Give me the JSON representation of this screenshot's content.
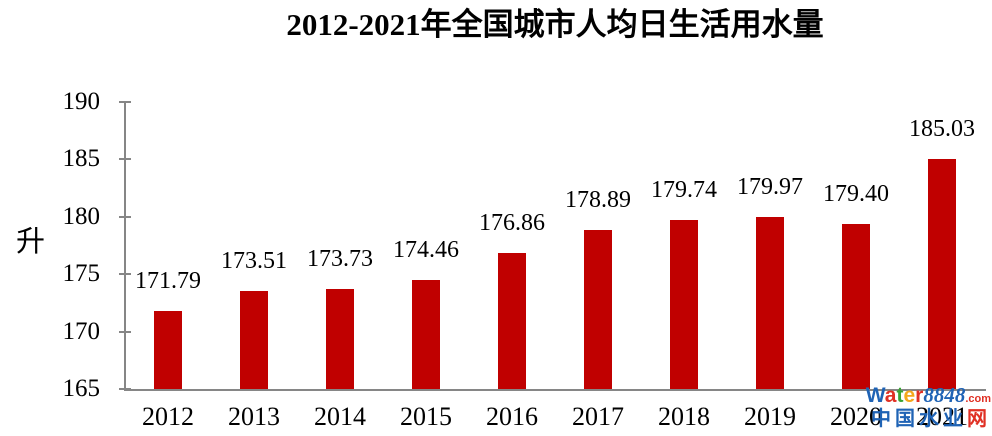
{
  "chart_data": {
    "type": "bar",
    "title": "2012-2021年全国城市人均日生活用水量",
    "ylabel": "升",
    "xlabel": "",
    "categories": [
      "2012",
      "2013",
      "2014",
      "2015",
      "2016",
      "2017",
      "2018",
      "2019",
      "2020",
      "2021"
    ],
    "values": [
      171.79,
      173.51,
      173.73,
      174.46,
      176.86,
      178.89,
      179.74,
      179.97,
      179.4,
      185.03
    ],
    "data_labels": [
      "171.79",
      "173.51",
      "173.73",
      "174.46",
      "176.86",
      "178.89",
      "179.74",
      "179.97",
      "179.40",
      "185.03"
    ],
    "ylim": [
      165,
      190
    ],
    "yticks": [
      165,
      170,
      175,
      180,
      185,
      190
    ],
    "grid": false,
    "legend_position": "none",
    "bar_color": "#c00000",
    "axis_color": "#868686",
    "text_color": "#000000",
    "background_color": "#ffffff"
  },
  "watermark": {
    "brand_letters": [
      {
        "t": "W",
        "c": "#1f63b5"
      },
      {
        "t": "a",
        "c": "#e03024"
      },
      {
        "t": "t",
        "c": "#3aa335"
      },
      {
        "t": "e",
        "c": "#f5a81c"
      },
      {
        "t": "r",
        "c": "#e03024"
      }
    ],
    "brand_suffix": {
      "t": "8848",
      "c": "#1f63b5"
    },
    "brand_tld": {
      "t": ".com",
      "c": "#e03024"
    },
    "site_name_chars": [
      {
        "t": "中",
        "c": "#1f63b5"
      },
      {
        "t": "国",
        "c": "#1f63b5"
      },
      {
        "t": "水",
        "c": "#1f63b5"
      },
      {
        "t": "业",
        "c": "#1f63b5"
      },
      {
        "t": "网",
        "c": "#e03024"
      }
    ]
  }
}
